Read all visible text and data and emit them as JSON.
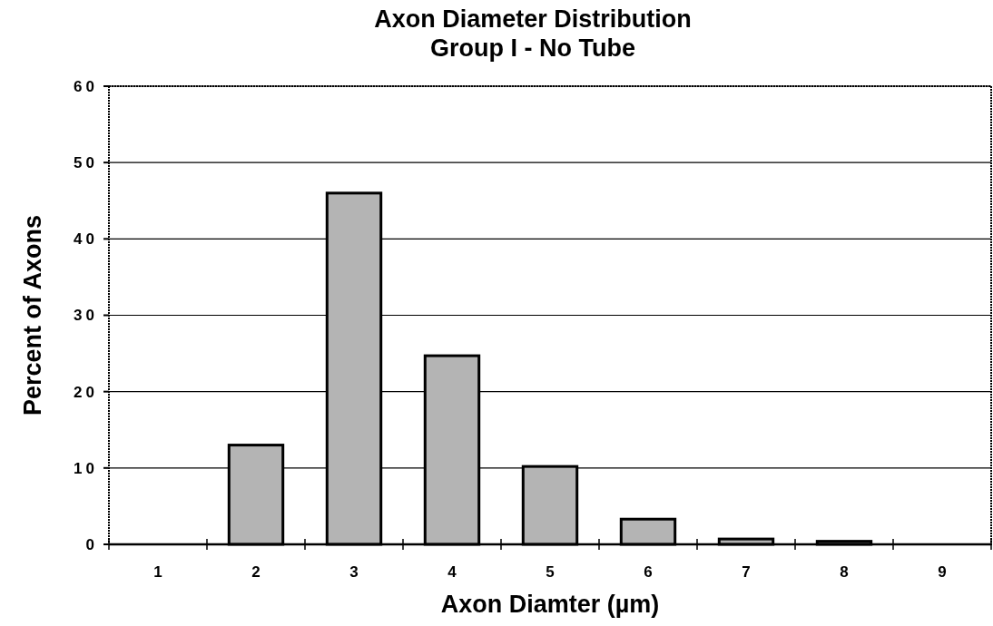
{
  "chart_data": {
    "type": "bar",
    "title": "Axon  Diameter  Distribution",
    "subtitle": "Group I - No Tube",
    "xlabel": "Axon  Diamter  (µm)",
    "ylabel": "Percent  of  Axons",
    "categories": [
      "1",
      "2",
      "3",
      "4",
      "5",
      "6",
      "7",
      "8",
      "9"
    ],
    "values": [
      0,
      13,
      46,
      24.7,
      10.2,
      3.3,
      0.7,
      0.4,
      0
    ],
    "color": "#b4b4b4",
    "ylim": [
      0,
      60
    ],
    "yticks": [
      0,
      10,
      20,
      30,
      40,
      50,
      60
    ],
    "grid": "y"
  }
}
